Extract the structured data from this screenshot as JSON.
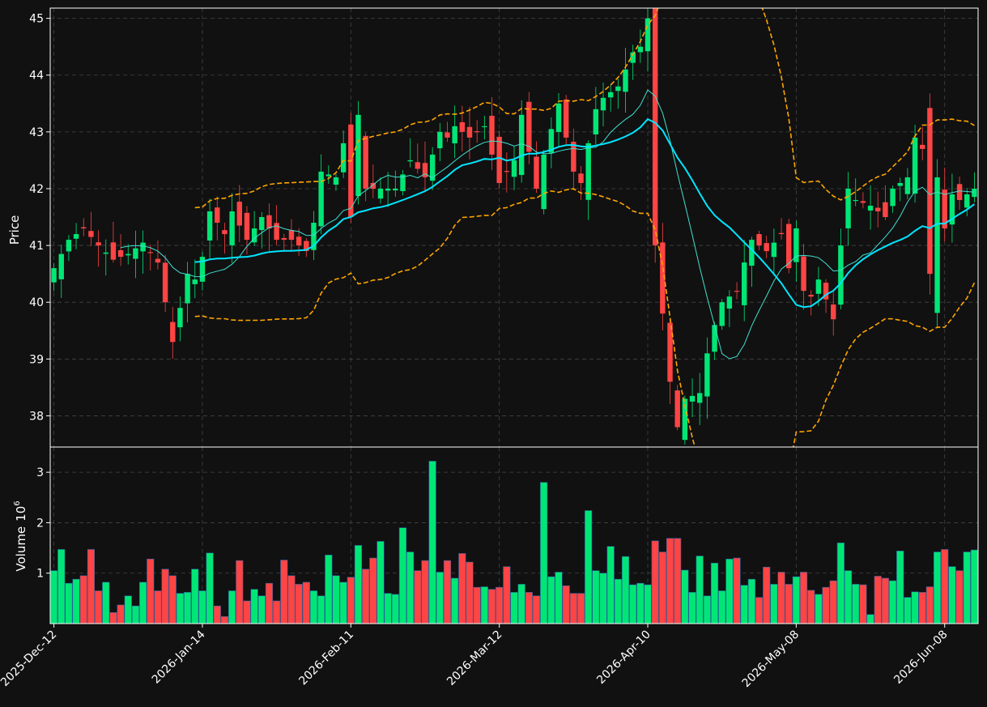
{
  "chart_data": {
    "type": "candlestick",
    "title": "",
    "price_panel": {
      "ylabel": "Price",
      "ylim": [
        37.45,
        45.18
      ],
      "yticks": [
        38,
        39,
        40,
        41,
        42,
        43,
        44,
        45
      ],
      "grid": true
    },
    "volume_panel": {
      "ylabel": "Volume",
      "ylabel_exponent": "6",
      "ylim": [
        0,
        3.5
      ],
      "yticks": [
        1,
        2,
        3
      ],
      "grid": true
    },
    "x_axis": {
      "tick_labels": [
        "2025-Dec-12",
        "2026-Jan-14",
        "2026-Feb-11",
        "2026-Mar-12",
        "2026-Apr-10",
        "2026-May-08",
        "2026-Jun-08"
      ],
      "tick_indices": [
        0,
        20,
        40,
        60,
        80,
        100,
        120
      ],
      "bar_count": 125
    },
    "colors": {
      "background": "#111111",
      "up": "#00e676",
      "down": "#ff4444",
      "ma_fast": "#40e0d0",
      "ma_slow": "#00e5ff",
      "bollinger": "#ffa500",
      "grid": "#444444",
      "axis": "#ffffff"
    },
    "close_anchors": [
      [
        0,
        40.6
      ],
      [
        2,
        41.1
      ],
      [
        4,
        41.3
      ],
      [
        6,
        41.0
      ],
      [
        8,
        40.75
      ],
      [
        10,
        40.85
      ],
      [
        12,
        41.05
      ],
      [
        14,
        40.7
      ],
      [
        16,
        39.3
      ],
      [
        17,
        39.9
      ],
      [
        18,
        40.5
      ],
      [
        19,
        40.4
      ],
      [
        20,
        40.8
      ],
      [
        21,
        41.6
      ],
      [
        23,
        41.2
      ],
      [
        24,
        41.6
      ],
      [
        26,
        41.1
      ],
      [
        28,
        41.5
      ],
      [
        30,
        41.1
      ],
      [
        32,
        41.1
      ],
      [
        34,
        40.9
      ],
      [
        35,
        41.4
      ],
      [
        36,
        42.3
      ],
      [
        38,
        42.2
      ],
      [
        39,
        42.8
      ],
      [
        40,
        41.5
      ],
      [
        41,
        43.3
      ],
      [
        42,
        42.0
      ],
      [
        44,
        42.0
      ],
      [
        46,
        42.0
      ],
      [
        48,
        42.5
      ],
      [
        50,
        42.2
      ],
      [
        52,
        43.0
      ],
      [
        53,
        42.9
      ],
      [
        54,
        43.1
      ],
      [
        56,
        42.9
      ],
      [
        58,
        43.1
      ],
      [
        60,
        42.1
      ],
      [
        62,
        42.5
      ],
      [
        63,
        43.3
      ],
      [
        65,
        42.0
      ],
      [
        66,
        42.6
      ],
      [
        68,
        43.5
      ],
      [
        70,
        42.3
      ],
      [
        71,
        42.1
      ],
      [
        72,
        42.8
      ],
      [
        73,
        43.4
      ],
      [
        74,
        43.6
      ],
      [
        76,
        43.8
      ],
      [
        78,
        44.4
      ],
      [
        79,
        44.5
      ],
      [
        80,
        45.0
      ],
      [
        81,
        41.0
      ],
      [
        82,
        39.8
      ],
      [
        83,
        38.6
      ],
      [
        84,
        37.8
      ],
      [
        85,
        38.3
      ],
      [
        87,
        38.4
      ],
      [
        88,
        39.1
      ],
      [
        89,
        39.6
      ],
      [
        90,
        40.0
      ],
      [
        92,
        40.2
      ],
      [
        93,
        40.7
      ],
      [
        94,
        41.1
      ],
      [
        96,
        40.9
      ],
      [
        98,
        41.2
      ],
      [
        99,
        40.6
      ],
      [
        100,
        41.3
      ],
      [
        101,
        40.2
      ],
      [
        102,
        40.1
      ],
      [
        103,
        40.4
      ],
      [
        105,
        39.7
      ],
      [
        106,
        41.0
      ],
      [
        107,
        42.0
      ],
      [
        108,
        41.8
      ],
      [
        110,
        41.7
      ],
      [
        112,
        41.5
      ],
      [
        113,
        42.0
      ],
      [
        115,
        42.2
      ],
      [
        116,
        42.9
      ],
      [
        117,
        42.7
      ],
      [
        118,
        40.5
      ],
      [
        119,
        42.2
      ],
      [
        120,
        41.3
      ],
      [
        121,
        41.9
      ],
      [
        122,
        41.8
      ],
      [
        124,
        42.0
      ]
    ],
    "volume_anchors": [
      [
        0,
        1.05
      ],
      [
        1,
        1.47
      ],
      [
        2,
        0.8
      ],
      [
        3,
        0.88
      ],
      [
        4,
        0.95
      ],
      [
        5,
        1.47
      ],
      [
        6,
        0.65
      ],
      [
        7,
        0.82
      ],
      [
        8,
        0.22
      ],
      [
        9,
        0.37
      ],
      [
        10,
        0.55
      ],
      [
        11,
        0.35
      ],
      [
        12,
        0.82
      ],
      [
        13,
        1.28
      ],
      [
        14,
        0.65
      ],
      [
        15,
        1.08
      ],
      [
        16,
        0.95
      ],
      [
        17,
        0.6
      ],
      [
        18,
        0.62
      ],
      [
        19,
        1.08
      ],
      [
        20,
        0.65
      ],
      [
        21,
        1.4
      ],
      [
        22,
        0.35
      ],
      [
        23,
        0.14
      ],
      [
        24,
        0.65
      ],
      [
        25,
        1.25
      ],
      [
        26,
        0.45
      ],
      [
        27,
        0.68
      ],
      [
        28,
        0.55
      ],
      [
        29,
        0.8
      ],
      [
        30,
        0.45
      ],
      [
        31,
        1.26
      ],
      [
        32,
        0.95
      ],
      [
        33,
        0.78
      ],
      [
        34,
        0.82
      ],
      [
        35,
        0.65
      ],
      [
        36,
        0.55
      ],
      [
        37,
        1.36
      ],
      [
        38,
        0.95
      ],
      [
        39,
        0.82
      ],
      [
        40,
        0.92
      ],
      [
        41,
        1.55
      ],
      [
        42,
        1.08
      ],
      [
        43,
        1.3
      ],
      [
        44,
        1.63
      ],
      [
        45,
        0.6
      ],
      [
        46,
        0.58
      ],
      [
        47,
        1.9
      ],
      [
        48,
        1.42
      ],
      [
        49,
        1.05
      ],
      [
        50,
        1.25
      ],
      [
        51,
        3.22
      ],
      [
        52,
        1.02
      ],
      [
        53,
        1.25
      ],
      [
        54,
        0.9
      ],
      [
        55,
        1.39
      ],
      [
        56,
        1.22
      ],
      [
        57,
        0.72
      ],
      [
        58,
        0.73
      ],
      [
        59,
        0.68
      ],
      [
        60,
        0.72
      ],
      [
        61,
        1.13
      ],
      [
        62,
        0.62
      ],
      [
        63,
        0.78
      ],
      [
        64,
        0.62
      ],
      [
        65,
        0.55
      ],
      [
        66,
        2.8
      ],
      [
        67,
        0.93
      ],
      [
        68,
        1.02
      ],
      [
        69,
        0.75
      ],
      [
        70,
        0.6
      ],
      [
        71,
        0.6
      ],
      [
        72,
        2.24
      ],
      [
        73,
        1.05
      ],
      [
        74,
        1.0
      ],
      [
        75,
        1.53
      ],
      [
        76,
        0.88
      ],
      [
        77,
        1.33
      ],
      [
        78,
        0.77
      ],
      [
        79,
        0.8
      ],
      [
        80,
        0.77
      ],
      [
        81,
        1.64
      ],
      [
        82,
        1.42
      ],
      [
        83,
        1.69
      ],
      [
        84,
        1.69
      ],
      [
        85,
        1.06
      ],
      [
        86,
        0.62
      ],
      [
        87,
        1.34
      ],
      [
        88,
        0.55
      ],
      [
        89,
        1.2
      ],
      [
        90,
        0.65
      ],
      [
        91,
        1.28
      ],
      [
        92,
        1.3
      ],
      [
        93,
        0.76
      ],
      [
        94,
        0.88
      ],
      [
        95,
        0.52
      ],
      [
        96,
        1.12
      ],
      [
        97,
        0.78
      ],
      [
        98,
        1.02
      ],
      [
        99,
        0.78
      ],
      [
        100,
        0.93
      ],
      [
        101,
        1.02
      ],
      [
        102,
        0.66
      ],
      [
        103,
        0.58
      ],
      [
        104,
        0.72
      ],
      [
        105,
        0.85
      ],
      [
        106,
        1.6
      ],
      [
        107,
        1.05
      ],
      [
        108,
        0.78
      ],
      [
        109,
        0.77
      ],
      [
        110,
        0.18
      ],
      [
        111,
        0.94
      ],
      [
        112,
        0.9
      ],
      [
        113,
        0.85
      ],
      [
        114,
        1.44
      ],
      [
        115,
        0.52
      ],
      [
        116,
        0.63
      ],
      [
        117,
        0.62
      ],
      [
        118,
        0.73
      ],
      [
        119,
        1.42
      ],
      [
        120,
        1.47
      ],
      [
        121,
        1.13
      ],
      [
        122,
        1.05
      ],
      [
        123,
        1.42
      ],
      [
        124,
        1.46
      ]
    ]
  }
}
